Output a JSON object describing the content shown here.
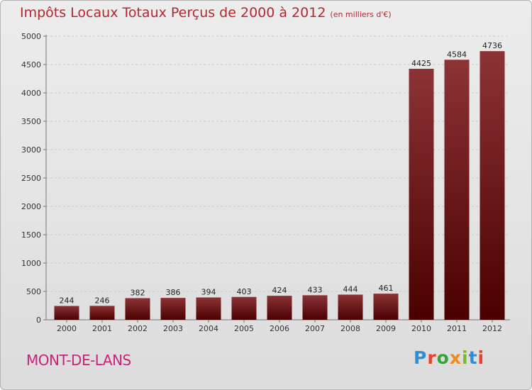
{
  "header": {
    "title": "Impôts Locaux Totaux Perçus de 2000 à 2012",
    "unit": "(en milliers d'€)"
  },
  "footer": {
    "location": "MONT-DE-LANS",
    "logo": [
      "P",
      "r",
      "o",
      "x",
      "i",
      "t",
      "i"
    ]
  },
  "colors": {
    "title": "#b3282d",
    "location": "#c8237a",
    "bar_top": "#8c3336",
    "bar_bottom": "#4a0000",
    "grid": "#c9c9c9"
  },
  "chart_data": {
    "type": "bar",
    "title": "Impôts Locaux Totaux Perçus de 2000 à 2012",
    "xlabel": "",
    "ylabel": "",
    "categories": [
      "2000",
      "2001",
      "2002",
      "2003",
      "2004",
      "2005",
      "2006",
      "2007",
      "2008",
      "2009",
      "2010",
      "2011",
      "2012"
    ],
    "values": [
      244,
      246,
      382,
      386,
      394,
      403,
      424,
      433,
      444,
      461,
      4425,
      4584,
      4736
    ],
    "ylim": [
      0,
      5000
    ],
    "yticks": [
      0,
      500,
      1000,
      1500,
      2000,
      2500,
      3000,
      3500,
      4000,
      4500,
      5000
    ],
    "grid": true,
    "data_labels": true
  }
}
